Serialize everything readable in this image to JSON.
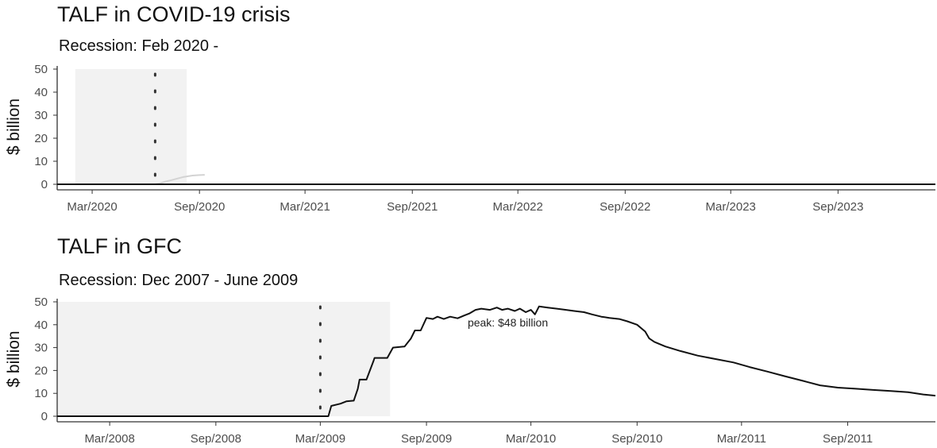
{
  "chart_data": [
    {
      "type": "line",
      "title": "TALF in COVID-19 crisis",
      "subtitle": "Recession: Feb 2020 -",
      "ylabel": "$ billion",
      "xlabel": "",
      "ylim": [
        0,
        50
      ],
      "yticks": [
        "0",
        "10",
        "20",
        "30",
        "40",
        "50"
      ],
      "xlim": [
        "2020-01-01",
        "2024-02-15"
      ],
      "xticks": [
        {
          "date": "2020-03-01",
          "label": "Mar/2020"
        },
        {
          "date": "2020-09-01",
          "label": "Sep/2020"
        },
        {
          "date": "2021-03-01",
          "label": "Mar/2021"
        },
        {
          "date": "2021-09-01",
          "label": "Sep/2021"
        },
        {
          "date": "2022-03-01",
          "label": "Mar/2022"
        },
        {
          "date": "2022-09-01",
          "label": "Sep/2022"
        },
        {
          "date": "2023-03-01",
          "label": "Mar/2023"
        },
        {
          "date": "2023-09-01",
          "label": "Sep/2023"
        }
      ],
      "recession": {
        "start": "2020-02-01",
        "end": "2020-08-10"
      },
      "marker_date": "2020-06-17",
      "grid": false,
      "series": [
        {
          "color": "#d3d3d3",
          "points": [
            [
              "2020-01-01",
              0
            ],
            [
              "2020-06-17",
              0
            ],
            [
              "2020-06-25",
              0.4
            ],
            [
              "2020-07-05",
              1.2
            ],
            [
              "2020-07-15",
              1.8
            ],
            [
              "2020-07-25",
              2.5
            ],
            [
              "2020-08-05",
              3.2
            ],
            [
              "2020-08-20",
              3.8
            ],
            [
              "2020-09-01",
              4.0
            ],
            [
              "2020-09-10",
              4.1
            ]
          ]
        },
        {
          "color": "#111111",
          "points": [
            [
              "2020-01-01",
              0
            ],
            [
              "2024-02-15",
              0
            ]
          ]
        }
      ]
    },
    {
      "type": "line",
      "title": "TALF in GFC",
      "subtitle": "Recession: Dec 2007 - June 2009",
      "ylabel": "$ billion",
      "xlabel": "",
      "ylim": [
        0,
        50
      ],
      "yticks": [
        "0",
        "10",
        "20",
        "30",
        "40",
        "50"
      ],
      "xlim": [
        "2007-12-01",
        "2012-01-31"
      ],
      "xticks": [
        {
          "date": "2008-03-01",
          "label": "Mar/2008"
        },
        {
          "date": "2008-09-01",
          "label": "Sep/2008"
        },
        {
          "date": "2009-03-01",
          "label": "Mar/2009"
        },
        {
          "date": "2009-09-01",
          "label": "Sep/2009"
        },
        {
          "date": "2010-03-01",
          "label": "Mar/2010"
        },
        {
          "date": "2010-09-01",
          "label": "Sep/2010"
        },
        {
          "date": "2011-03-01",
          "label": "Mar/2011"
        },
        {
          "date": "2011-09-01",
          "label": "Sep/2011"
        }
      ],
      "recession": {
        "start": "2007-12-01",
        "end": "2009-06-30"
      },
      "marker_date": "2009-03-01",
      "grid": false,
      "annotation": {
        "text": "peak: $48 billion",
        "date": "2010-01-20",
        "value": 41
      },
      "series": [
        {
          "color": "#111111",
          "points": [
            [
              "2007-12-01",
              0
            ],
            [
              "2009-03-15",
              0
            ],
            [
              "2009-03-20",
              4.5
            ],
            [
              "2009-04-05",
              5.5
            ],
            [
              "2009-04-15",
              6.5
            ],
            [
              "2009-04-28",
              6.8
            ],
            [
              "2009-05-05",
              12
            ],
            [
              "2009-05-08",
              16
            ],
            [
              "2009-05-20",
              16
            ],
            [
              "2009-06-01",
              24
            ],
            [
              "2009-06-03",
              25.5
            ],
            [
              "2009-06-25",
              25.5
            ],
            [
              "2009-07-05",
              30
            ],
            [
              "2009-07-25",
              30.5
            ],
            [
              "2009-08-05",
              34
            ],
            [
              "2009-08-12",
              37.5
            ],
            [
              "2009-08-22",
              37.5
            ],
            [
              "2009-09-01",
              43
            ],
            [
              "2009-09-12",
              42.5
            ],
            [
              "2009-09-20",
              43.5
            ],
            [
              "2009-10-01",
              42.5
            ],
            [
              "2009-10-12",
              43.5
            ],
            [
              "2009-10-25",
              42.8
            ],
            [
              "2009-11-05",
              44
            ],
            [
              "2009-11-15",
              45
            ],
            [
              "2009-11-25",
              46.5
            ],
            [
              "2009-12-05",
              47
            ],
            [
              "2009-12-20",
              46.5
            ],
            [
              "2010-01-01",
              47.5
            ],
            [
              "2010-01-10",
              46.5
            ],
            [
              "2010-01-20",
              47
            ],
            [
              "2010-02-01",
              46
            ],
            [
              "2010-02-10",
              47
            ],
            [
              "2010-02-20",
              45.5
            ],
            [
              "2010-03-01",
              46.5
            ],
            [
              "2010-03-08",
              44.5
            ],
            [
              "2010-03-15",
              48
            ],
            [
              "2010-03-30",
              47.5
            ],
            [
              "2010-04-15",
              47
            ],
            [
              "2010-05-01",
              46.5
            ],
            [
              "2010-05-15",
              46
            ],
            [
              "2010-06-01",
              45.5
            ],
            [
              "2010-06-15",
              44.5
            ],
            [
              "2010-07-01",
              43.5
            ],
            [
              "2010-07-15",
              43
            ],
            [
              "2010-08-01",
              42.5
            ],
            [
              "2010-08-15",
              41.5
            ],
            [
              "2010-09-01",
              40
            ],
            [
              "2010-09-15",
              37
            ],
            [
              "2010-09-22",
              34
            ],
            [
              "2010-10-01",
              32.5
            ],
            [
              "2010-10-20",
              30.5
            ],
            [
              "2010-11-15",
              28.5
            ],
            [
              "2010-12-15",
              26.5
            ],
            [
              "2011-01-15",
              25
            ],
            [
              "2011-02-15",
              23.5
            ],
            [
              "2011-03-15",
              21.5
            ],
            [
              "2011-04-15",
              19.5
            ],
            [
              "2011-05-15",
              17.5
            ],
            [
              "2011-06-15",
              15.5
            ],
            [
              "2011-07-15",
              13.5
            ],
            [
              "2011-08-15",
              12.5
            ],
            [
              "2011-09-15",
              12
            ],
            [
              "2011-10-15",
              11.5
            ],
            [
              "2011-11-15",
              11
            ],
            [
              "2011-12-15",
              10.5
            ],
            [
              "2012-01-10",
              9.5
            ],
            [
              "2012-01-31",
              9
            ]
          ]
        }
      ]
    }
  ]
}
